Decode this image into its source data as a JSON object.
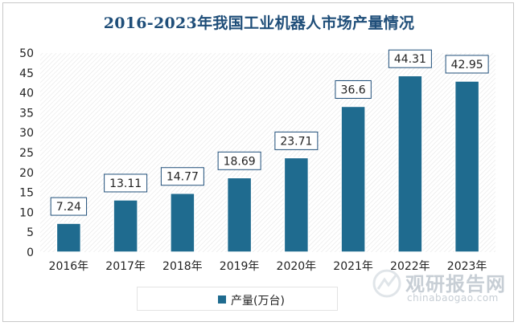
{
  "chart_data": {
    "type": "bar",
    "title": "2016-2023年我国工业机器人市场产量情况",
    "categories": [
      "2016年",
      "2017年",
      "2018年",
      "2019年",
      "2020年",
      "2021年",
      "2022年",
      "2023年"
    ],
    "series": [
      {
        "name": "产量(万台)",
        "values": [
          7.24,
          13.11,
          14.77,
          18.69,
          23.71,
          36.6,
          44.31,
          42.95
        ]
      }
    ],
    "data_labels": [
      "7.24",
      "13.11",
      "14.77",
      "18.69",
      "23.71",
      "36.6",
      "44.31",
      "42.95"
    ],
    "y_ticks": [
      "0",
      "5",
      "10",
      "15",
      "20",
      "25",
      "30",
      "35",
      "40",
      "45",
      "50"
    ],
    "ylim": [
      0,
      50
    ],
    "xlabel": "",
    "ylabel": "",
    "legend_position": "bottom",
    "grid": false,
    "bar_color": "#1f6b8f"
  },
  "watermark": {
    "title": "观研报告网",
    "url": "chinabaogao.com"
  }
}
